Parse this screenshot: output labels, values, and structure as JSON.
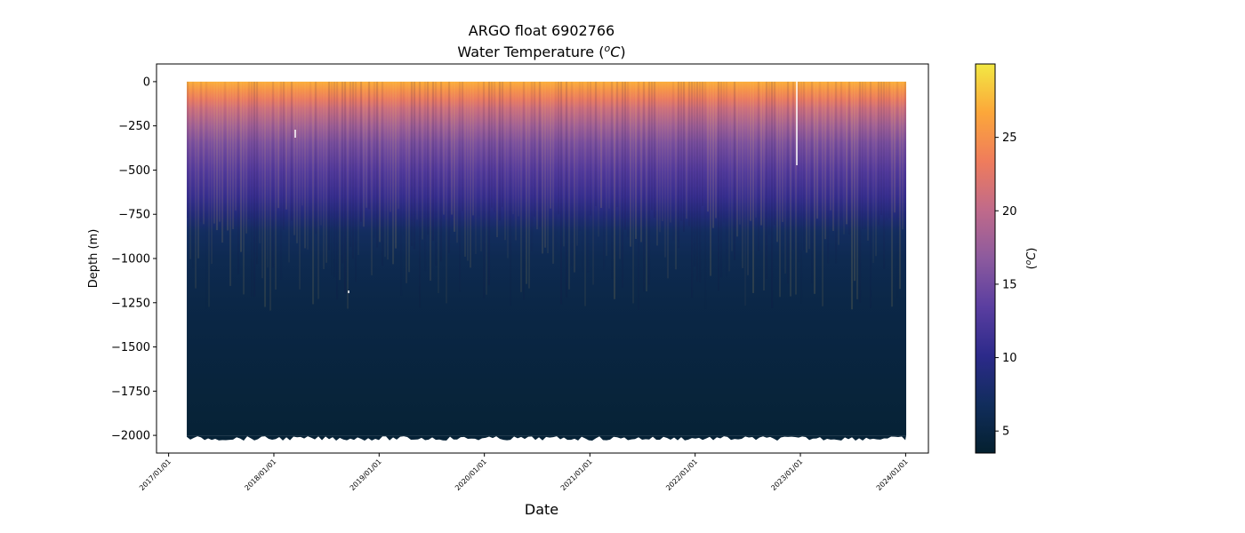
{
  "chart_data": {
    "type": "heatmap",
    "title": "ARGO float 6902766",
    "subtitle_prefix": "Water Temperature (",
    "subtitle_unit_super": "o",
    "subtitle_unit_letter": "C",
    "subtitle_suffix": ")",
    "xlabel": "Date",
    "ylabel": "Depth (m)",
    "colorbar_label_prefix": "(",
    "colorbar_label_super": "o",
    "colorbar_label_letter": "C",
    "colorbar_label_suffix": ")",
    "x_ticks": [
      "2017/01/01",
      "2018/01/01",
      "2019/01/01",
      "2020/01/01",
      "2021/01/01",
      "2022/01/01",
      "2023/01/01",
      "2024/01/01"
    ],
    "y_ticks": [
      0,
      -250,
      -500,
      -750,
      -1000,
      -1250,
      -1500,
      -1750,
      -2000
    ],
    "ylim": [
      -2100,
      100
    ],
    "xlim": [
      "2016/11/20",
      "2024/03/20"
    ],
    "data_x_range": [
      "2017/03/05",
      "2024/01/03"
    ],
    "data_depth_range": [
      0,
      -2000
    ],
    "colorbar_ticks": [
      5,
      10,
      15,
      20,
      25
    ],
    "colorbar_range": [
      3.5,
      30
    ],
    "colormap": "thermal",
    "colormap_stops": [
      "#04202f",
      "#112d5c",
      "#2c2a8a",
      "#5a3ea0",
      "#8c5a9e",
      "#c06a8a",
      "#ef7c5c",
      "#fca73a",
      "#f2e843"
    ],
    "temperature_profile": [
      {
        "depth": 0,
        "temp": 27
      },
      {
        "depth": -50,
        "temp": 25
      },
      {
        "depth": -100,
        "temp": 23
      },
      {
        "depth": -150,
        "temp": 21
      },
      {
        "depth": -250,
        "temp": 18
      },
      {
        "depth": -350,
        "temp": 15.5
      },
      {
        "depth": -500,
        "temp": 13
      },
      {
        "depth": -650,
        "temp": 11
      },
      {
        "depth": -750,
        "temp": 9
      },
      {
        "depth": -850,
        "temp": 7
      },
      {
        "depth": -1000,
        "temp": 6
      },
      {
        "depth": -1250,
        "temp": 5.3
      },
      {
        "depth": -1500,
        "temp": 4.8
      },
      {
        "depth": -1750,
        "temp": 4.4
      },
      {
        "depth": -2000,
        "temp": 4
      }
    ],
    "grid": false
  }
}
